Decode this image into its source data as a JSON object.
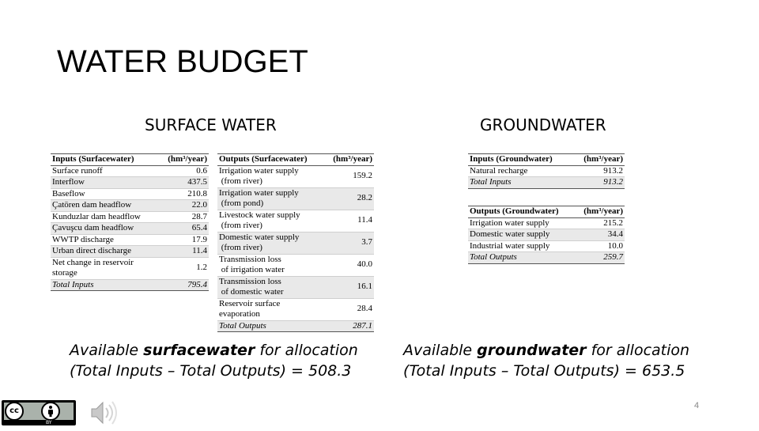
{
  "slide": {
    "title": "WATER BUDGET",
    "page_number": "4"
  },
  "surface": {
    "heading": "SURFACE WATER",
    "inputs": {
      "header": [
        "Inputs (Surfacewater)",
        "(hm³/year)"
      ],
      "rows": [
        [
          "Surface runoff",
          "0.6"
        ],
        [
          "Interflow",
          "437.5"
        ],
        [
          "Baseflow",
          "210.8"
        ],
        [
          "Çatören dam headflow",
          "22.0"
        ],
        [
          "Kunduzlar dam headflow",
          "28.7"
        ],
        [
          "Çavuşcu dam headflow",
          "65.4"
        ],
        [
          "WWTP discharge",
          "17.9"
        ],
        [
          "Urban direct discharge",
          "11.4"
        ]
      ],
      "net_label_1": "Net change in reservoir",
      "net_label_2": "storage",
      "net_value": "1.2",
      "total": [
        "Total Inputs",
        "795.4"
      ]
    },
    "outputs": {
      "header": [
        "Outputs (Surfacewater)",
        "(hm³/year)"
      ],
      "rows": [
        [
          "Irrigation water supply",
          "(from river)",
          "159.2"
        ],
        [
          "Irrigation water supply",
          "(from pond)",
          "28.2"
        ],
        [
          "Livestock water supply",
          "(from river)",
          "11.4"
        ],
        [
          "Domestic water supply",
          "(from river)",
          "3.7"
        ],
        [
          "Transmission loss",
          "of irrigation water",
          "40.0"
        ],
        [
          "Transmission loss",
          "of domestic water",
          "16.1"
        ],
        [
          "Reservoir surface",
          "evaporation",
          "28.4"
        ]
      ],
      "total": [
        "Total Outputs",
        "287.1"
      ]
    },
    "caption_pre": "Available ",
    "caption_bold": "surfacewater",
    "caption_post": " for allocation",
    "caption_line2": "(Total Inputs – Total Outputs) = 508.3"
  },
  "ground": {
    "heading": "GROUNDWATER",
    "inputs": {
      "header": [
        "Inputs (Groundwater)",
        "(hm³/year)"
      ],
      "rows": [
        [
          "Natural recharge",
          "913.2"
        ]
      ],
      "total": [
        "Total Inputs",
        "913.2"
      ]
    },
    "outputs": {
      "header": [
        "Outputs (Groundwater)",
        "(hm³/year)"
      ],
      "rows": [
        [
          "Irrigation water supply",
          "215.2"
        ],
        [
          "Domestic water supply",
          "34.4"
        ],
        [
          "Industrial water supply",
          "10.0"
        ]
      ],
      "total": [
        "Total Outputs",
        "259.7"
      ]
    },
    "caption_pre": "Available ",
    "caption_bold": "groundwater",
    "caption_post": " for allocation",
    "caption_line2": "(Total Inputs – Total Outputs) = 653.5"
  },
  "footer": {
    "license_badge": "BY",
    "license_icons": [
      "cc-icon",
      "attribution-icon"
    ],
    "audio_icon": "speaker-icon"
  }
}
